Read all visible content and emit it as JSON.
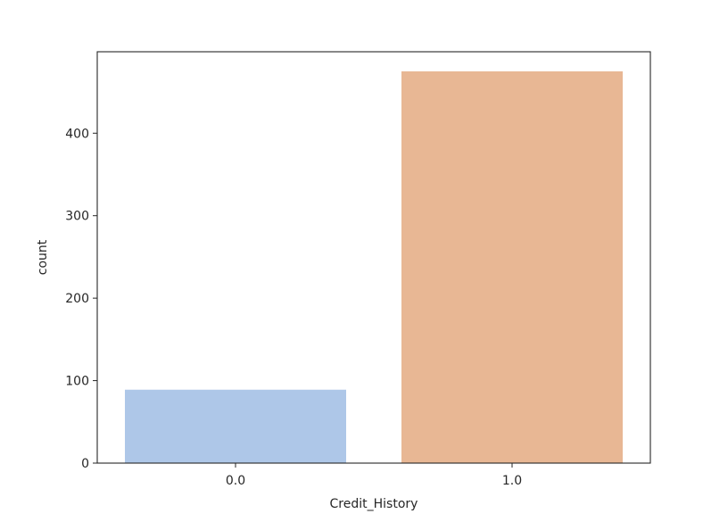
{
  "chart_data": {
    "type": "bar",
    "categories": [
      "0.0",
      "1.0"
    ],
    "values": [
      89,
      475
    ],
    "colors": [
      "#aec7e8",
      "#e8b794"
    ],
    "xlabel": "Credit_History",
    "ylabel": "count",
    "ylim": [
      0,
      498.75
    ],
    "yticks": [
      0,
      100,
      200,
      300,
      400
    ],
    "grid": false,
    "legend": "none"
  }
}
